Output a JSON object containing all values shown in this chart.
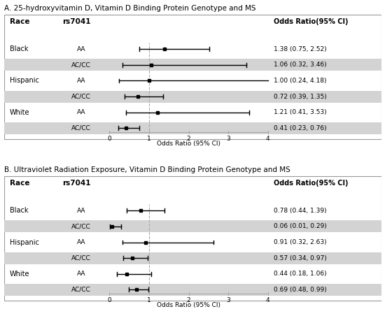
{
  "panel_A": {
    "title": "A. 25-hydroxyvitamin D, Vitamin D Binding Protein Genotype and MS",
    "rows": [
      {
        "race": "Black",
        "genotype": "AA",
        "or": 1.38,
        "lo": 0.75,
        "hi": 2.52,
        "label": "1.38 (0.75, 2.52)",
        "shaded": false
      },
      {
        "race": "",
        "genotype": "AC/CC",
        "or": 1.06,
        "lo": 0.32,
        "hi": 3.46,
        "label": "1.06 (0.32, 3.46)",
        "shaded": true
      },
      {
        "race": "Hispanic",
        "genotype": "AA",
        "or": 1.0,
        "lo": 0.24,
        "hi": 4.18,
        "label": "1.00 (0.24, 4.18)",
        "shaded": false
      },
      {
        "race": "",
        "genotype": "AC/CC",
        "or": 0.72,
        "lo": 0.39,
        "hi": 1.35,
        "label": "0.72 (0.39, 1.35)",
        "shaded": true
      },
      {
        "race": "White",
        "genotype": "AA",
        "or": 1.21,
        "lo": 0.41,
        "hi": 3.53,
        "label": "1.21 (0.41, 3.53)",
        "shaded": false
      },
      {
        "race": "",
        "genotype": "AC/CC",
        "or": 0.41,
        "lo": 0.23,
        "hi": 0.76,
        "label": "0.41 (0.23, 0.76)",
        "shaded": true
      }
    ]
  },
  "panel_B": {
    "title": "B. Ultraviolet Radiation Exposure, Vitamin D Binding Protein Genotype and MS",
    "rows": [
      {
        "race": "Black",
        "genotype": "AA",
        "or": 0.78,
        "lo": 0.44,
        "hi": 1.39,
        "label": "0.78 (0.44, 1.39)",
        "shaded": false
      },
      {
        "race": "",
        "genotype": "AC/CC",
        "or": 0.06,
        "lo": 0.01,
        "hi": 0.29,
        "label": "0.06 (0.01, 0.29)",
        "shaded": true
      },
      {
        "race": "Hispanic",
        "genotype": "AA",
        "or": 0.91,
        "lo": 0.32,
        "hi": 2.63,
        "label": "0.91 (0.32, 2.63)",
        "shaded": false
      },
      {
        "race": "",
        "genotype": "AC/CC",
        "or": 0.57,
        "lo": 0.34,
        "hi": 0.97,
        "label": "0.57 (0.34, 0.97)",
        "shaded": true
      },
      {
        "race": "White",
        "genotype": "AA",
        "or": 0.44,
        "lo": 0.18,
        "hi": 1.06,
        "label": "0.44 (0.18, 1.06)",
        "shaded": false
      },
      {
        "race": "",
        "genotype": "AC/CC",
        "or": 0.69,
        "lo": 0.48,
        "hi": 0.99,
        "label": "0.69 (0.48, 0.99)",
        "shaded": true
      }
    ]
  },
  "xlim": [
    0,
    4
  ],
  "xticks": [
    0,
    1,
    2,
    3,
    4
  ],
  "xlabel": "Odds Ratio (95% CI)",
  "shaded_color": "#d3d3d3",
  "header_race": "Race",
  "header_genotype": "rs7041",
  "header_or": "Odds Ratio(95% CI)",
  "ref_line": 1.0,
  "fig_bg": "#ffffff"
}
